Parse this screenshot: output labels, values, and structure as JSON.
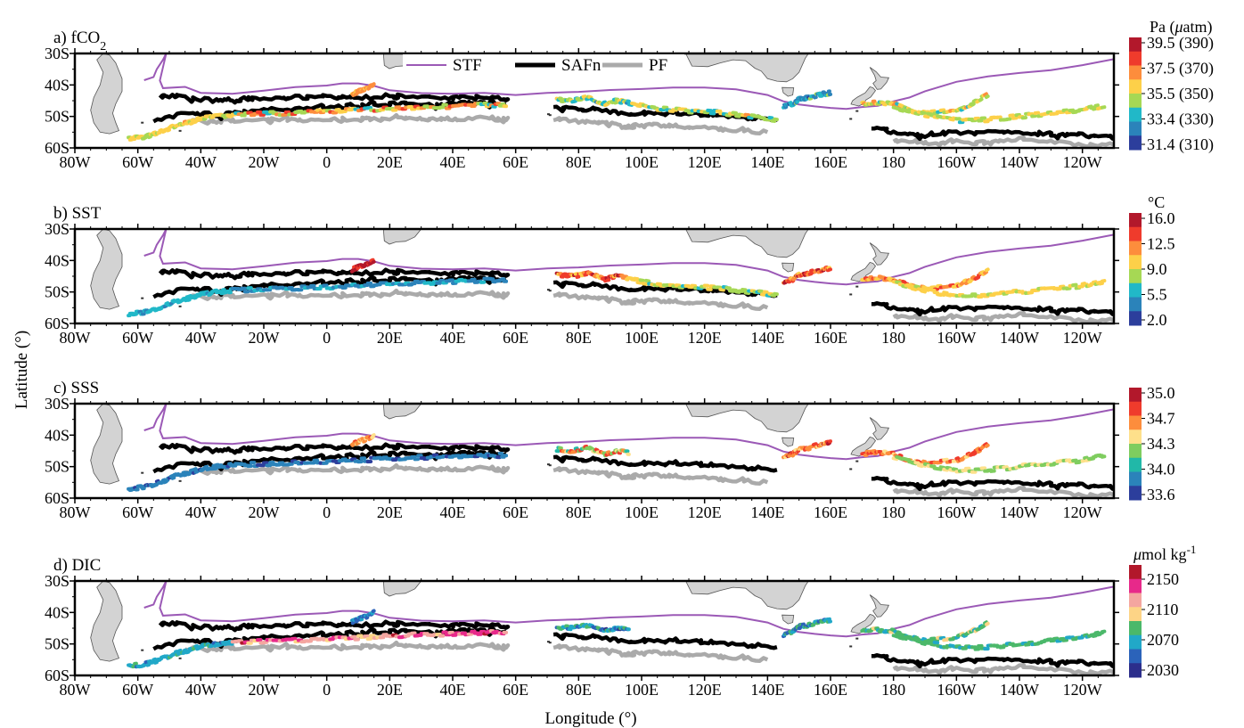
{
  "figure": {
    "xlabel": "Longitude (°)",
    "ylabel": "Latitude (°)",
    "lat_ticks": [
      "30S",
      "40S",
      "50S",
      "60S"
    ],
    "lon_ticks": [
      "80W",
      "60W",
      "40W",
      "20W",
      "0",
      "20E",
      "40E",
      "60E",
      "80E",
      "100E",
      "120E",
      "140E",
      "160E",
      "180",
      "160W",
      "140W",
      "120W"
    ],
    "legend": [
      {
        "label": "STF",
        "color": "#9b59b6",
        "style": "thin"
      },
      {
        "label": "SAFn",
        "color": "#000000",
        "style": "thick"
      },
      {
        "label": "PF",
        "color": "#aaaaaa",
        "style": "thick"
      }
    ],
    "land_color": "#d3d3d3"
  },
  "panels": [
    {
      "label_main": "a) fCO",
      "label_sub": "2",
      "cb_title": "Pa (",
      "cb_mu": "μ",
      "cb_title_end": "atm)",
      "cb_sup": "",
      "cb_ticks": [
        "39.5 (390)",
        "37.5 (370)",
        "35.5 (350)",
        "33.4 (330)",
        "31.4 (310)"
      ],
      "cb_colors": [
        "#b2182b",
        "#ef3b2c",
        "#fd8d3c",
        "#fdd049",
        "#a6d854",
        "#21b8c8",
        "#2b83ba",
        "#2c3e9c"
      ]
    },
    {
      "label_main": "b) SST",
      "label_sub": "",
      "cb_title": "°C",
      "cb_mu": "",
      "cb_title_end": "",
      "cb_sup": "",
      "cb_ticks": [
        "16.0",
        "12.5",
        "9.0",
        "5.5",
        "2.0"
      ],
      "cb_colors": [
        "#b2182b",
        "#ef3b2c",
        "#fd8d3c",
        "#fdd049",
        "#a6d854",
        "#21b8c8",
        "#2b83ba",
        "#2c3e9c"
      ]
    },
    {
      "label_main": "c) SSS",
      "label_sub": "",
      "cb_title": "",
      "cb_mu": "",
      "cb_title_end": "",
      "cb_sup": "",
      "cb_ticks": [
        "35.0",
        "34.7",
        "34.3",
        "34.0",
        "33.6"
      ],
      "cb_colors": [
        "#b2182b",
        "#ef3b2c",
        "#fd8d3c",
        "#fee08b",
        "#7fcd5f",
        "#21b8a8",
        "#2b83ba",
        "#2c3e9c"
      ]
    },
    {
      "label_main": "d) DIC",
      "label_sub": "",
      "cb_title": "",
      "cb_mu": "μ",
      "cb_title_end": "mol kg",
      "cb_sup": "-1",
      "cb_ticks": [
        "2150",
        "2110",
        "2070",
        "2030"
      ],
      "cb_colors": [
        "#b2182b",
        "#e7298a",
        "#f4a6a0",
        "#fdd486",
        "#4bb86a",
        "#21a8c8",
        "#2b63ba",
        "#2c2e8c"
      ]
    }
  ]
}
